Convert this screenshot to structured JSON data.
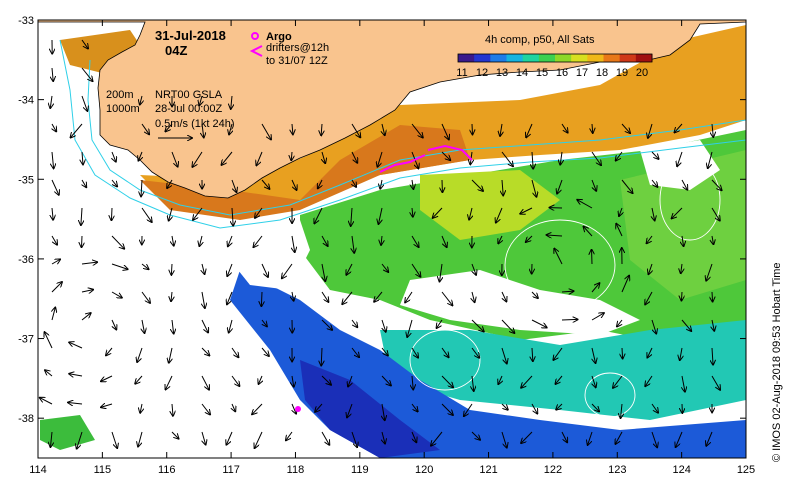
{
  "map": {
    "date": "31-Jul-2018",
    "time": "04Z",
    "x_ticks": [
      "114",
      "115",
      "116",
      "117",
      "118",
      "119",
      "120",
      "121",
      "122",
      "123",
      "124",
      "125"
    ],
    "y_ticks": [
      "-33",
      "-34",
      "-35",
      "-36",
      "-37",
      "-38"
    ],
    "lon_range": [
      114,
      125
    ],
    "lat_range": [
      -38.5,
      -33
    ]
  },
  "legend": {
    "argo_label": "Argo",
    "drifters_label": "drifters@12h",
    "drifters_to": "to 31/07 12Z",
    "isobath_200": "200m",
    "isobath_1000": "1000m",
    "sla_product": "NRT00 GSLA",
    "sla_time": "28-Jul 00:00Z",
    "scale_vector": "0.5m/s (1kt 24h)"
  },
  "colorbar": {
    "title": "4h comp, p50, All Sats",
    "labels": [
      "11",
      "12",
      "13",
      "14",
      "15",
      "16",
      "17",
      "18",
      "19",
      "20"
    ]
  },
  "credit": "©  IMOS 02-Aug-2018 09:53 Hobart Time",
  "colors": {
    "land": "#f9c48e",
    "isobath": "#2fd0e8",
    "argo": "#ff00ff",
    "drifter": "#ff00ff",
    "contour": "#ffffff"
  }
}
